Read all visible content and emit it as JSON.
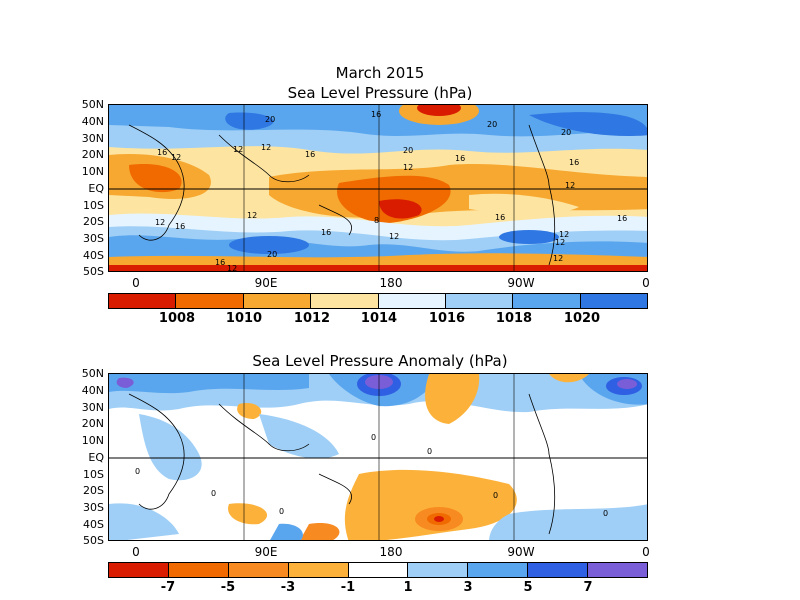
{
  "panel1": {
    "title_line1": "March 2015",
    "title_line2": "Sea Level Pressure (hPa)",
    "lat_labels": [
      "50N",
      "40N",
      "30N",
      "20N",
      "10N",
      "EQ",
      "10S",
      "20S",
      "30S",
      "40S",
      "50S"
    ],
    "lon_labels": [
      "0",
      "90E",
      "180",
      "90W",
      "0"
    ],
    "contour_labels": [
      "16",
      "20",
      "12",
      "16",
      "12",
      "12",
      "16",
      "20",
      "16",
      "20",
      "20",
      "16",
      "12",
      "12",
      "16",
      "12",
      "12",
      "8",
      "12",
      "16",
      "12",
      "16",
      "16",
      "12",
      "12",
      "20",
      "16",
      "12"
    ],
    "colorbar": {
      "colors": [
        "#d91c00",
        "#f06a00",
        "#f7a830",
        "#fde4a0",
        "#e6f4ff",
        "#9fcff6",
        "#5aa6ee",
        "#2f77e2"
      ],
      "labels": [
        "1008",
        "1010",
        "1012",
        "1014",
        "1016",
        "1018",
        "1020"
      ]
    }
  },
  "panel2": {
    "title": "Sea Level Pressure Anomaly (hPa)",
    "lat_labels": [
      "50N",
      "40N",
      "30N",
      "20N",
      "10N",
      "EQ",
      "10S",
      "20S",
      "30S",
      "40S",
      "50S"
    ],
    "lon_labels": [
      "0",
      "90E",
      "180",
      "90W",
      "0"
    ],
    "contour_labels": [
      "0",
      "0",
      "0",
      "0",
      "0",
      "0",
      "0"
    ],
    "colorbar": {
      "colors": [
        "#d91c00",
        "#f06a00",
        "#f78a20",
        "#fcb23a",
        "#ffffff",
        "#9fcff6",
        "#5aa6ee",
        "#2f5fe2",
        "#7a5ed8"
      ],
      "labels": [
        "-7",
        "-5",
        "-3",
        "-1",
        "1",
        "3",
        "5",
        "7"
      ]
    }
  }
}
